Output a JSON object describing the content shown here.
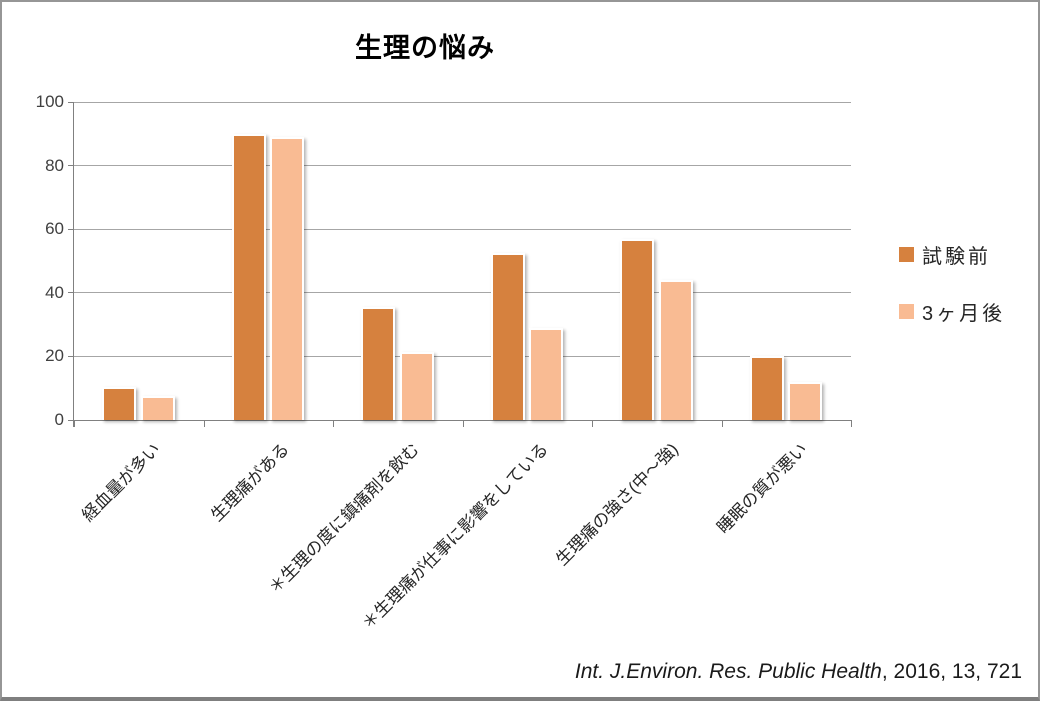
{
  "chart_data": {
    "type": "bar",
    "title": "生理の悩み",
    "categories": [
      "経血量が多い",
      "生理痛がある",
      "＊生理の度に鎮痛剤を飲む",
      "＊生理痛が仕事に影響をしている",
      "生理痛の強さ(中～強)",
      "睡眠の質が悪い"
    ],
    "series": [
      {
        "name": "試験前",
        "color": "#D6813E",
        "values": [
          10.5,
          90,
          35.5,
          52.5,
          57,
          20
        ]
      },
      {
        "name": "3ヶ月後",
        "color": "#F9BB93",
        "values": [
          7.5,
          89,
          21.5,
          29,
          44,
          12
        ]
      }
    ],
    "xlabel": "",
    "ylabel": "",
    "ylim": [
      0,
      100
    ],
    "yticks": [
      0,
      20,
      40,
      60,
      80,
      100
    ],
    "grid": "horizontal",
    "legend_position": "right"
  },
  "citation": {
    "journal": "Int. J.Environ. Res. Public Health",
    "suffix": ", 2016, 13, 721"
  },
  "colors": {
    "grid": "#A6A6A6",
    "axis": "#808080",
    "tick_text": "#404040",
    "label_text": "#262626"
  }
}
